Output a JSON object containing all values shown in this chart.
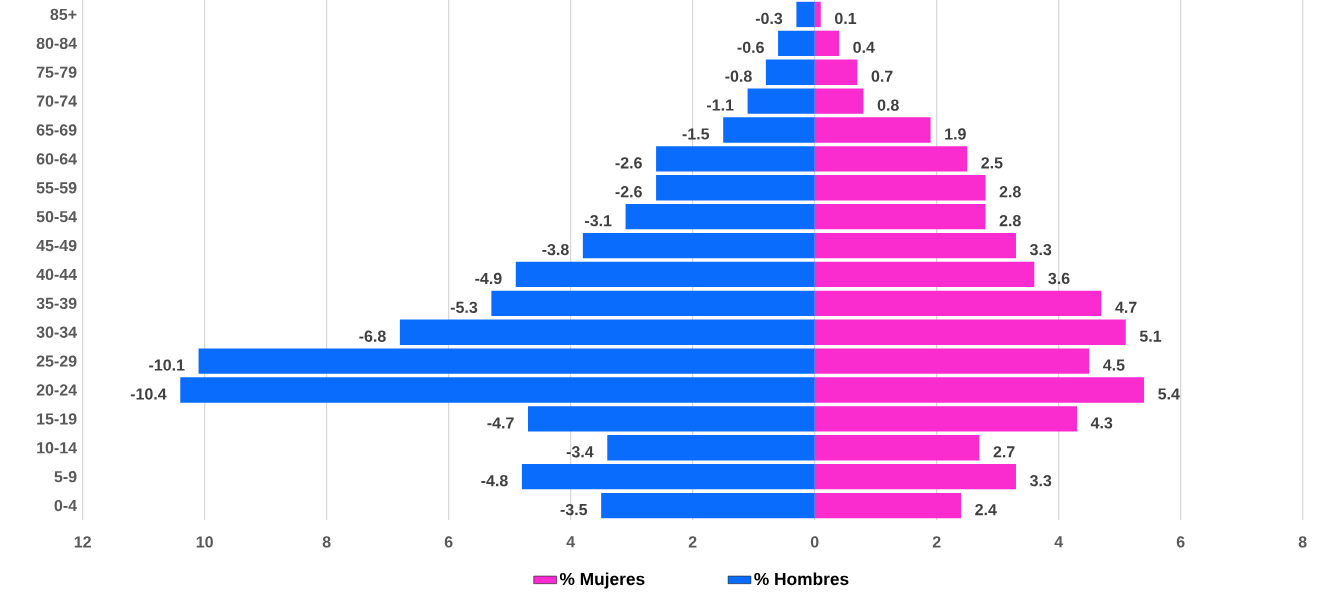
{
  "chart_data": {
    "type": "bar",
    "orientation": "horizontal",
    "categories": [
      "85+",
      "80-84",
      "75-79",
      "70-74",
      "65-69",
      "60-64",
      "55-59",
      "50-54",
      "45-49",
      "40-44",
      "35-39",
      "30-34",
      "25-29",
      "20-24",
      "15-19",
      "10-14",
      "5-9",
      "0-4"
    ],
    "series": [
      {
        "name": "% Mujeres",
        "color": "#fb2ccf",
        "values": [
          0.1,
          0.4,
          0.7,
          0.8,
          1.9,
          2.5,
          2.8,
          2.8,
          3.3,
          3.6,
          4.7,
          5.1,
          4.5,
          5.4,
          4.3,
          2.7,
          3.3,
          2.4
        ]
      },
      {
        "name": "% Hombres",
        "color": "#0a6cfc",
        "values": [
          -0.3,
          -0.6,
          -0.8,
          -1.1,
          -1.5,
          -2.6,
          -2.6,
          -3.1,
          -3.8,
          -4.9,
          -5.3,
          -6.8,
          -10.1,
          -10.4,
          -4.7,
          -3.4,
          -4.8,
          -3.5
        ]
      }
    ],
    "xlim": [
      -12,
      8
    ],
    "xticks": [
      {
        "value": -12,
        "label": "12"
      },
      {
        "value": -10,
        "label": "10"
      },
      {
        "value": -8,
        "label": "8"
      },
      {
        "value": -6,
        "label": "6"
      },
      {
        "value": -4,
        "label": "4"
      },
      {
        "value": -2,
        "label": "2"
      },
      0,
      2,
      4,
      6,
      8
    ],
    "stacked": true,
    "grid": "x",
    "legend": "bottom",
    "data_labels": true
  }
}
